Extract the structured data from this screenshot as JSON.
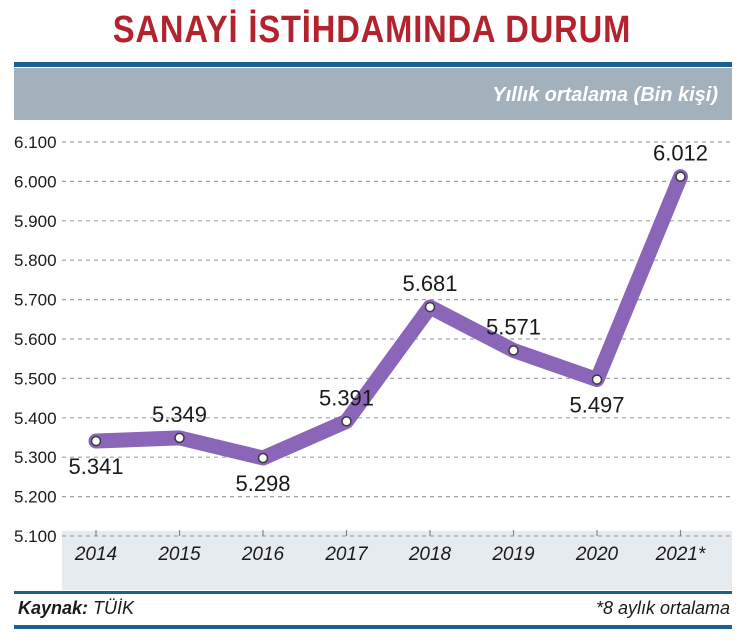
{
  "header": {
    "title": "SANAYİ İSTİHDAMINDA DURUM",
    "subtitle": "Yıllık ortalama (Bin kişi)"
  },
  "footer": {
    "source_label": "Kaynak:",
    "source_value": "TÜİK",
    "note": "*8 aylık ortalama"
  },
  "colors": {
    "title": "#b3232d",
    "line": "#8a65b8",
    "accent": "#1d5f8f",
    "band": "#a3b1bc"
  },
  "chart_data": {
    "type": "line",
    "title": "SANAYİ İSTİHDAMINDA DURUM",
    "ylabel": "Yıllık ortalama (Bin kişi)",
    "categories": [
      "2014",
      "2015",
      "2016",
      "2017",
      "2018",
      "2019",
      "2020",
      "2021*"
    ],
    "values": [
      5341,
      5349,
      5298,
      5391,
      5681,
      5571,
      5497,
      6012
    ],
    "value_labels": [
      "5.341",
      "5.349",
      "5.298",
      "5.391",
      "5.681",
      "5.571",
      "5.497",
      "6.012"
    ],
    "yticks": [
      5100,
      5200,
      5300,
      5400,
      5500,
      5600,
      5700,
      5800,
      5900,
      6000,
      6100
    ],
    "ytick_labels": [
      "5.100",
      "5.200",
      "5.300",
      "5.400",
      "5.500",
      "5.600",
      "5.700",
      "5.800",
      "5.900",
      "6.000",
      "6.100"
    ],
    "ylim": [
      5100,
      6100
    ],
    "grid": true,
    "legend": "none"
  }
}
